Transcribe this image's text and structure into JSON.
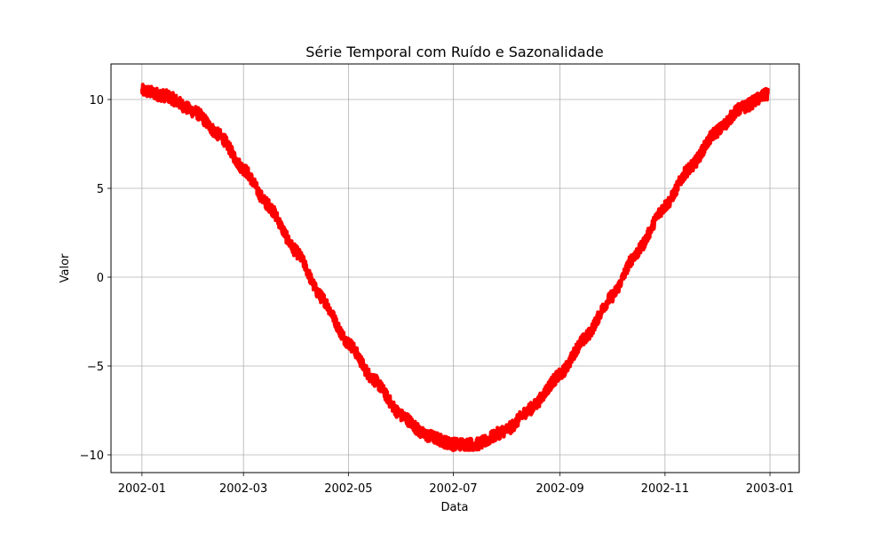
{
  "chart_data": {
    "type": "line",
    "title": "Série Temporal com Ruído e Sazonalidade",
    "xlabel": "Data",
    "ylabel": "Valor",
    "x_axis_kind": "date",
    "xlim": [
      "2001-12-14",
      "2003-01-18"
    ],
    "ylim": [
      -11,
      12
    ],
    "x_ticks": [
      "2002-01",
      "2002-03",
      "2002-05",
      "2002-07",
      "2002-09",
      "2002-11",
      "2003-01"
    ],
    "y_ticks": [
      -10,
      -5,
      0,
      5,
      10
    ],
    "y_tick_labels": [
      "−10",
      "−5",
      "0",
      "5",
      "10"
    ],
    "grid": true,
    "legend": "none",
    "series": [
      {
        "color": "#ff0000",
        "x": [
          "2002-01-01",
          "2002-01-15",
          "2002-02-01",
          "2002-02-15",
          "2002-03-01",
          "2002-03-15",
          "2002-04-01",
          "2002-04-15",
          "2002-05-01",
          "2002-05-15",
          "2002-06-01",
          "2002-06-15",
          "2002-07-01",
          "2002-07-15",
          "2002-08-01",
          "2002-08-15",
          "2002-09-01",
          "2002-09-15",
          "2002-10-01",
          "2002-10-15",
          "2002-11-01",
          "2002-11-15",
          "2002-12-01",
          "2002-12-15",
          "2002-12-31"
        ],
        "values": [
          10.5,
          10.2,
          9.3,
          8.0,
          6.1,
          4.1,
          1.4,
          -1.1,
          -3.7,
          -5.7,
          -7.8,
          -8.9,
          -9.4,
          -9.4,
          -8.6,
          -7.4,
          -5.5,
          -3.5,
          -1.1,
          1.3,
          4.0,
          6.1,
          8.2,
          9.5,
          10.3
        ],
        "noise_amplitude": 0.35
      }
    ]
  }
}
